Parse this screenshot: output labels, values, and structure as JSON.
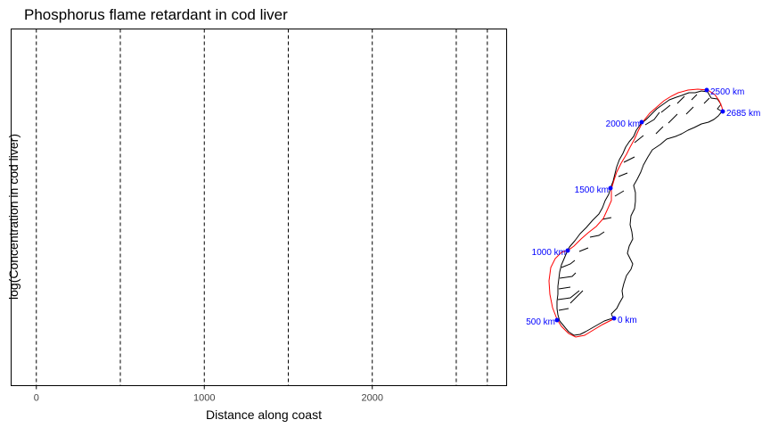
{
  "chart_data": {
    "type": "scatter",
    "title": "Phosphorus flame retardant in cod liver",
    "xlabel": "Distance along coast",
    "ylabel": "log(Concentration in cod liver)",
    "xlim": [
      -150,
      2800
    ],
    "x_ticks": [
      {
        "value": 0,
        "label": "0"
      },
      {
        "value": 1000,
        "label": "1000"
      },
      {
        "value": 2000,
        "label": "2000"
      }
    ],
    "series": [],
    "grid": false,
    "vlines": {
      "style": "dashed",
      "color": "#000000",
      "values": [
        0,
        500,
        1000,
        1500,
        2000,
        2500,
        2685
      ]
    },
    "map_inset": {
      "coastline_color": "#000000",
      "route_color": "#ff0000",
      "marker_color": "#0000ff",
      "markers": [
        {
          "km": 0,
          "label": "0 km"
        },
        {
          "km": 500,
          "label": "500 km"
        },
        {
          "km": 1000,
          "label": "1000 km"
        },
        {
          "km": 1500,
          "label": "1500 km"
        },
        {
          "km": 2000,
          "label": "2000 km"
        },
        {
          "km": 2500,
          "label": "2500 km"
        },
        {
          "km": 2685,
          "label": "2685 km"
        }
      ]
    }
  }
}
